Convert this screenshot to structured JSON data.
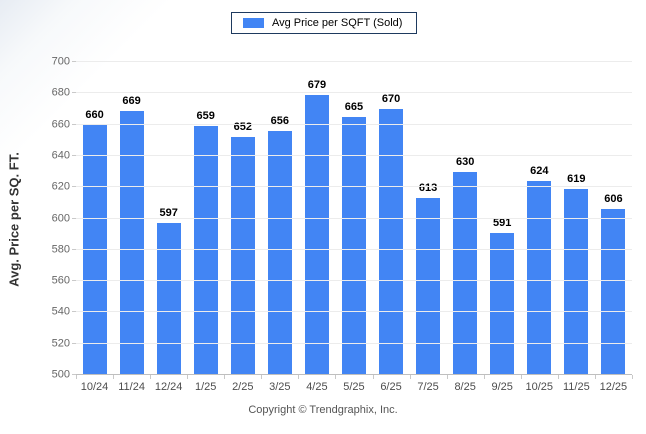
{
  "chart_data": {
    "type": "bar",
    "title": "",
    "legend": "Avg Price per SQFT (Sold)",
    "categories": [
      "10/24",
      "11/24",
      "12/24",
      "1/25",
      "2/25",
      "3/25",
      "4/25",
      "5/25",
      "6/25",
      "7/25",
      "8/25",
      "9/25",
      "10/25",
      "11/25",
      "12/25"
    ],
    "values": [
      660,
      669,
      597,
      659,
      652,
      656,
      679,
      665,
      670,
      613,
      630,
      591,
      624,
      619,
      606
    ],
    "xlabel": "",
    "ylabel": "Avg. Price per SQ. FT.",
    "ylim": [
      500,
      700
    ],
    "yticks": [
      500,
      520,
      540,
      560,
      580,
      600,
      620,
      640,
      660,
      680,
      700
    ],
    "grid": "horizontal",
    "legend_position": "top-center",
    "value_labels": "above-bars"
  },
  "footer": {
    "text": "Copyright © Trendgraphix, Inc."
  },
  "colors": {
    "bar": "#4285F4",
    "legend_border": "#1e3a5f",
    "gridline": "#ececec",
    "axis_line": "#bfbfbf",
    "tick": "#c9c9c9",
    "value_label": "#000000",
    "axis_text": "#4d4d4d",
    "y_axis_text": "#666666",
    "footer_text": "#555555"
  }
}
